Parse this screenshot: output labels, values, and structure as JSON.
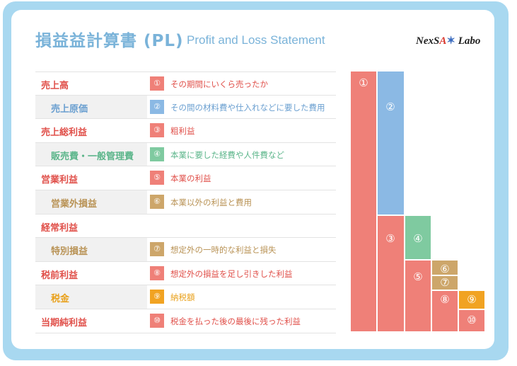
{
  "header": {
    "title": "損益益計算書 (PL)",
    "subtitle": "Profit and Loss Statement",
    "logo": {
      "part1": "NexS",
      "part2": "A",
      "star": "✶",
      "part3": " Labo"
    }
  },
  "rows": [
    {
      "label": "売上高",
      "num": "①",
      "desc": "その期間にいくら売ったか",
      "label_color": "red",
      "num_color": "red",
      "desc_color": "red",
      "indent": false
    },
    {
      "label": "売上原価",
      "num": "②",
      "desc": "その間の材料費や仕入れなどに要した費用",
      "label_color": "blue",
      "num_color": "blue",
      "desc_color": "blue",
      "indent": true
    },
    {
      "label": "売上総利益",
      "num": "③",
      "desc": "粗利益",
      "label_color": "red",
      "num_color": "red",
      "desc_color": "red",
      "indent": false
    },
    {
      "label": "販売費・一般管理費",
      "num": "④",
      "desc": "本業に要した経費や人件費など",
      "label_color": "green",
      "num_color": "green",
      "desc_color": "green",
      "indent": true
    },
    {
      "label": "営業利益",
      "num": "⑤",
      "desc": "本業の利益",
      "label_color": "red",
      "num_color": "red",
      "desc_color": "red",
      "indent": false
    },
    {
      "label": "営業外損益",
      "num": "⑥",
      "desc": "本業以外の利益と費用",
      "label_color": "tan",
      "num_color": "tan",
      "desc_color": "tan",
      "indent": true
    },
    {
      "label": "経常利益",
      "num": "",
      "desc": "",
      "label_color": "red",
      "num_color": "",
      "desc_color": "red",
      "indent": false
    },
    {
      "label": "特別損益",
      "num": "⑦",
      "desc": "想定外の一時的な利益と損失",
      "label_color": "tan",
      "num_color": "tan",
      "desc_color": "tan",
      "indent": true
    },
    {
      "label": "税前利益",
      "num": "⑧",
      "desc": "想定外の損益を足し引きした利益",
      "label_color": "red",
      "num_color": "red",
      "desc_color": "red",
      "indent": false
    },
    {
      "label": "税金",
      "num": "⑨",
      "desc": "納税額",
      "label_color": "orange",
      "num_color": "orange",
      "desc_color": "orange",
      "indent": true
    },
    {
      "label": "当期純利益",
      "num": "⑩",
      "desc": "税金を払った後の最後に残った利益",
      "label_color": "red",
      "num_color": "red",
      "desc_color": "red",
      "indent": false
    }
  ],
  "diagram": {
    "blocks": [
      {
        "label": "①",
        "color": "red"
      },
      {
        "label": "②",
        "color": "blue"
      },
      {
        "label": "③",
        "color": "red"
      },
      {
        "label": "④",
        "color": "green"
      },
      {
        "label": "⑤",
        "color": "red"
      },
      {
        "label": "⑥",
        "color": "tan"
      },
      {
        "label": "⑦",
        "color": "tan"
      },
      {
        "label": "⑧",
        "color": "red"
      },
      {
        "label": "⑨",
        "color": "orange"
      },
      {
        "label": "⑩",
        "color": "red"
      }
    ]
  },
  "colors": {
    "red": "#ef8078",
    "blue": "#8bb9e4",
    "green": "#7fcaa0",
    "tan": "#cda66a",
    "orange": "#f1a322",
    "frame": "#a8d8f0",
    "title": "#7ab3d9"
  }
}
